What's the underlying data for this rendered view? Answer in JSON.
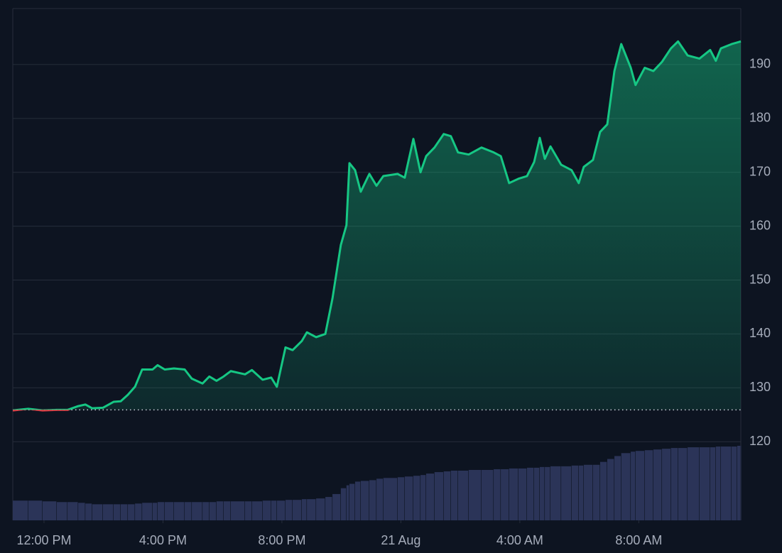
{
  "chart_data": {
    "type": "area",
    "x": [
      -1.05,
      -0.53,
      -0.05,
      0.43,
      0.79,
      1.15,
      1.39,
      1.62,
      1.98,
      2.34,
      2.58,
      2.82,
      3.06,
      3.3,
      3.65,
      3.82,
      4.06,
      4.37,
      4.73,
      4.97,
      5.33,
      5.56,
      5.8,
      6.04,
      6.28,
      6.76,
      6.99,
      7.35,
      7.64,
      7.83,
      8.12,
      8.36,
      8.67,
      8.84,
      9.15,
      9.46,
      9.7,
      9.98,
      10.17,
      10.27,
      10.46,
      10.65,
      10.94,
      11.18,
      11.41,
      11.89,
      12.13,
      12.42,
      12.66,
      12.85,
      13.13,
      13.44,
      13.68,
      13.92,
      14.28,
      14.71,
      15.12,
      15.36,
      15.64,
      15.95,
      16.24,
      16.48,
      16.67,
      16.84,
      17.03,
      17.39,
      17.74,
      17.98,
      18.15,
      18.46,
      18.7,
      18.94,
      19.18,
      19.41,
      19.73,
      19.89,
      20.2,
      20.49,
      20.78,
      21.08,
      21.32,
      21.64,
      22.04,
      22.4,
      22.59,
      22.76,
      23.12,
      23.31,
      23.43
    ],
    "series": [
      {
        "color": "#16c784",
        "values": [
          125.8,
          126.1,
          125.8,
          125.9,
          125.9,
          126.6,
          126.9,
          126.2,
          126.3,
          127.4,
          127.5,
          128.7,
          130.2,
          133.4,
          133.4,
          134.2,
          133.4,
          133.6,
          133.4,
          131.7,
          130.8,
          132.1,
          131.3,
          132.1,
          133.1,
          132.5,
          133.3,
          131.5,
          131.9,
          130.2,
          137.5,
          137.0,
          138.7,
          140.3,
          139.4,
          140.0,
          146.6,
          156.5,
          160.2,
          171.7,
          170.4,
          166.4,
          169.7,
          167.5,
          169.3,
          169.7,
          169.0,
          176.2,
          170.0,
          173.0,
          174.6,
          177.1,
          176.7,
          173.7,
          173.3,
          174.6,
          173.7,
          173.0,
          168.0,
          168.8,
          169.3,
          171.9,
          176.4,
          172.5,
          174.8,
          171.4,
          170.4,
          168.0,
          171.0,
          172.3,
          177.5,
          178.9,
          188.8,
          193.8,
          189.4,
          186.2,
          189.4,
          188.8,
          190.5,
          193.0,
          194.3,
          191.7,
          191.1,
          192.7,
          190.7,
          193.0,
          193.8,
          194.1,
          194.3
        ]
      }
    ],
    "down_color": "#ea3943",
    "baseline": 125.9,
    "volume": {
      "color": "#2b3458",
      "values": [
        27,
        27,
        26,
        25,
        25,
        24,
        23,
        22,
        22,
        22,
        22,
        22,
        23,
        24,
        24,
        25,
        25,
        25,
        25,
        25,
        25,
        25,
        26,
        26,
        26,
        26,
        26,
        27,
        27,
        27,
        28,
        28,
        29,
        29,
        30,
        32,
        36,
        44,
        48,
        50,
        53,
        54,
        55,
        57,
        58,
        59,
        60,
        61,
        62,
        64,
        66,
        67,
        68,
        68,
        69,
        69,
        70,
        70,
        71,
        71,
        72,
        72,
        73,
        73,
        74,
        74,
        75,
        75,
        76,
        76,
        80,
        84,
        88,
        92,
        94,
        95,
        96,
        97,
        98,
        99,
        99,
        100,
        100,
        100,
        101,
        101,
        101,
        102,
        102
      ]
    },
    "xlim": [
      -1.05,
      23.43
    ],
    "xticks": [
      {
        "value": 0,
        "label": "12:00 PM"
      },
      {
        "value": 4,
        "label": "4:00 PM"
      },
      {
        "value": 8,
        "label": "8:00 PM"
      },
      {
        "value": 12,
        "label": "21 Aug"
      },
      {
        "value": 16,
        "label": "4:00 AM"
      },
      {
        "value": 20,
        "label": "8:00 AM"
      }
    ],
    "ylim": [
      105.4,
      200.4
    ],
    "yticks": [
      120,
      130,
      140,
      150,
      160,
      170,
      180,
      190
    ],
    "grid": true
  }
}
